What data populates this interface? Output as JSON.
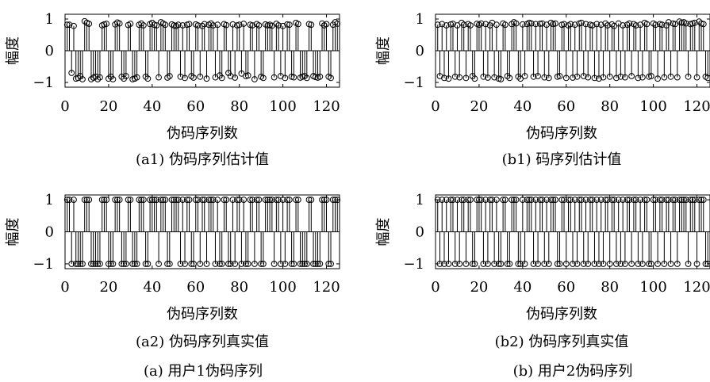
{
  "figure": {
    "captions": {
      "a": "(a) 用户1伪码序列",
      "b": "(b) 用户2伪码序列"
    }
  },
  "chart_data": [
    {
      "id": "a1",
      "type": "stem",
      "caption": "(a1) 伪码序列估计值",
      "xlabel": "伪码序列数",
      "ylabel": "幅度",
      "xlim": [
        0,
        126
      ],
      "ylim": [
        -1.15,
        1.15
      ],
      "xticks": [
        0,
        20,
        40,
        60,
        80,
        100,
        120
      ],
      "yticks": [
        -1,
        0,
        1
      ],
      "grid": false,
      "x_start": 1,
      "values": [
        0.82,
        0.82,
        -0.7,
        0.78,
        -0.88,
        -0.86,
        -0.8,
        -0.9,
        0.93,
        0.88,
        0.85,
        -0.9,
        -0.85,
        -0.82,
        -0.9,
        -0.84,
        0.8,
        0.83,
        0.85,
        -0.88,
        -0.82,
        -0.9,
        0.83,
        0.89,
        0.86,
        -0.82,
        -0.88,
        -0.8,
        0.81,
        0.85,
        -0.9,
        -0.88,
        -0.84,
        0.82,
        0.86,
        0.8,
        -0.82,
        -0.88,
        0.84,
        0.88,
        0.82,
        0.8,
        -0.84,
        0.9,
        0.86,
        0.82,
        -0.85,
        -0.8,
        0.83,
        0.8,
        0.78,
        0.82,
        -0.82,
        0.8,
        -0.86,
        0.82,
        0.84,
        -0.8,
        -0.85,
        0.83,
        0.8,
        -0.82,
        0.78,
        0.84,
        -0.88,
        0.82,
        0.86,
        0.8,
        -0.84,
        0.82,
        -0.78,
        -0.86,
        0.84,
        0.81,
        -0.7,
        -0.8,
        0.83,
        -0.85,
        0.8,
        0.82,
        -0.72,
        0.85,
        -0.8,
        -0.78,
        0.82,
        0.8,
        -0.9,
        0.84,
        0.8,
        -0.82,
        -0.86,
        0.83,
        0.8,
        0.82,
        0.79,
        -0.84,
        0.85,
        0.8,
        -0.8,
        0.78,
        -0.86,
        0.83,
        0.82,
        -0.82,
        -0.84,
        0.88,
        0.84,
        -0.85,
        -0.82,
        -0.8,
        -0.86,
        0.84,
        0.82,
        -0.8,
        -0.83,
        -0.85,
        -0.82,
        0.86,
        0.8,
        0.84,
        -0.82,
        -0.86,
        0.82,
        0.9,
        0.85
      ]
    },
    {
      "id": "b1",
      "type": "stem",
      "caption": "(b1) 码序列估计值",
      "xlabel": "伪码序列数",
      "ylabel": "幅度",
      "xlim": [
        0,
        126
      ],
      "ylim": [
        -1.15,
        1.15
      ],
      "xticks": [
        0,
        20,
        40,
        60,
        80,
        100,
        120
      ],
      "yticks": [
        -1,
        0,
        1
      ],
      "grid": false,
      "x_start": 1,
      "values": [
        0.82,
        -0.8,
        0.84,
        -0.86,
        0.8,
        -0.88,
        0.83,
        0.85,
        -0.82,
        0.8,
        -0.84,
        0.88,
        0.82,
        -0.86,
        0.84,
        0.8,
        -0.8,
        -0.88,
        0.85,
        0.82,
        0.86,
        -0.82,
        0.84,
        -0.85,
        0.8,
        0.88,
        -0.84,
        0.82,
        -0.88,
        -0.9,
        0.86,
        0.82,
        -0.8,
        -0.86,
        0.84,
        0.9,
        0.86,
        -0.82,
        -0.88,
        0.83,
        -0.8,
        0.84,
        0.88,
        0.86,
        -0.82,
        0.84,
        -0.8,
        0.85,
        0.86,
        -0.84,
        0.82,
        -0.86,
        0.88,
        0.84,
        0.86,
        -0.82,
        -0.8,
        0.82,
        0.84,
        -0.86,
        0.8,
        0.84,
        -0.85,
        0.82,
        -0.82,
        0.86,
        0.88,
        -0.8,
        0.84,
        -0.84,
        0.82,
        0.8,
        -0.86,
        0.84,
        -0.88,
        0.82,
        -0.84,
        0.86,
        0.8,
        -0.82,
        0.83,
        0.78,
        -0.86,
        0.86,
        -0.82,
        0.8,
        -0.84,
        0.82,
        0.86,
        -0.8,
        0.84,
        0.8,
        -0.86,
        0.82,
        -0.84,
        0.88,
        0.84,
        -0.82,
        -0.8,
        0.86,
        0.82,
        -0.88,
        0.84,
        0.82,
        -0.84,
        0.8,
        0.9,
        -0.82,
        0.86,
        0.84,
        -0.84,
        0.92,
        0.88,
        0.9,
        0.86,
        -0.82,
        0.84,
        0.86,
        0.88,
        -0.84,
        0.92,
        0.86,
        0.84,
        -0.82,
        -0.86
      ]
    },
    {
      "id": "a2",
      "type": "stem",
      "caption": "(a2) 伪码序列真实值",
      "xlabel": "伪码序列数",
      "ylabel": "幅度",
      "xlim": [
        0,
        126
      ],
      "ylim": [
        -1.15,
        1.15
      ],
      "xticks": [
        0,
        20,
        40,
        60,
        80,
        100,
        120
      ],
      "yticks": [
        -1,
        0,
        1
      ],
      "grid": false,
      "x_start": 1,
      "values": [
        1,
        1,
        -1,
        1,
        -1,
        -1,
        -1,
        -1,
        1,
        1,
        1,
        -1,
        -1,
        -1,
        -1,
        -1,
        1,
        1,
        1,
        -1,
        -1,
        -1,
        1,
        1,
        1,
        -1,
        -1,
        -1,
        1,
        1,
        -1,
        -1,
        -1,
        1,
        1,
        1,
        -1,
        -1,
        1,
        1,
        1,
        1,
        -1,
        1,
        1,
        1,
        -1,
        -1,
        1,
        1,
        1,
        1,
        -1,
        1,
        -1,
        1,
        1,
        -1,
        -1,
        1,
        1,
        -1,
        1,
        1,
        -1,
        1,
        1,
        1,
        -1,
        1,
        -1,
        -1,
        1,
        1,
        -1,
        -1,
        1,
        -1,
        1,
        1,
        -1,
        1,
        -1,
        -1,
        1,
        1,
        -1,
        1,
        1,
        -1,
        -1,
        1,
        1,
        1,
        1,
        -1,
        1,
        1,
        -1,
        1,
        -1,
        1,
        1,
        -1,
        -1,
        1,
        1,
        -1,
        -1,
        -1,
        -1,
        1,
        1,
        -1,
        -1,
        -1,
        -1,
        1,
        1,
        1,
        -1,
        -1,
        1,
        1,
        1
      ]
    },
    {
      "id": "b2",
      "type": "stem",
      "caption": "(b2) 伪码序列真实值",
      "xlabel": "伪码序列数",
      "ylabel": "幅度",
      "xlim": [
        0,
        126
      ],
      "ylim": [
        -1.15,
        1.15
      ],
      "xticks": [
        0,
        20,
        40,
        60,
        80,
        100,
        120
      ],
      "yticks": [
        -1,
        0,
        1
      ],
      "grid": false,
      "x_start": 1,
      "values": [
        1,
        -1,
        1,
        -1,
        1,
        -1,
        1,
        1,
        -1,
        1,
        -1,
        1,
        1,
        -1,
        1,
        1,
        -1,
        -1,
        1,
        1,
        1,
        -1,
        1,
        -1,
        1,
        1,
        -1,
        1,
        -1,
        -1,
        1,
        1,
        -1,
        -1,
        1,
        1,
        1,
        -1,
        -1,
        1,
        -1,
        1,
        1,
        1,
        -1,
        1,
        -1,
        1,
        1,
        -1,
        1,
        -1,
        1,
        1,
        1,
        -1,
        -1,
        1,
        1,
        -1,
        1,
        1,
        -1,
        1,
        -1,
        1,
        1,
        -1,
        1,
        -1,
        1,
        1,
        -1,
        1,
        -1,
        1,
        -1,
        1,
        1,
        -1,
        1,
        1,
        -1,
        1,
        -1,
        1,
        -1,
        1,
        1,
        -1,
        1,
        1,
        -1,
        1,
        -1,
        1,
        1,
        -1,
        -1,
        1,
        1,
        -1,
        1,
        1,
        -1,
        1,
        1,
        -1,
        1,
        1,
        -1,
        1,
        1,
        1,
        1,
        -1,
        1,
        1,
        1,
        -1,
        1,
        1,
        1,
        -1,
        -1
      ]
    }
  ]
}
